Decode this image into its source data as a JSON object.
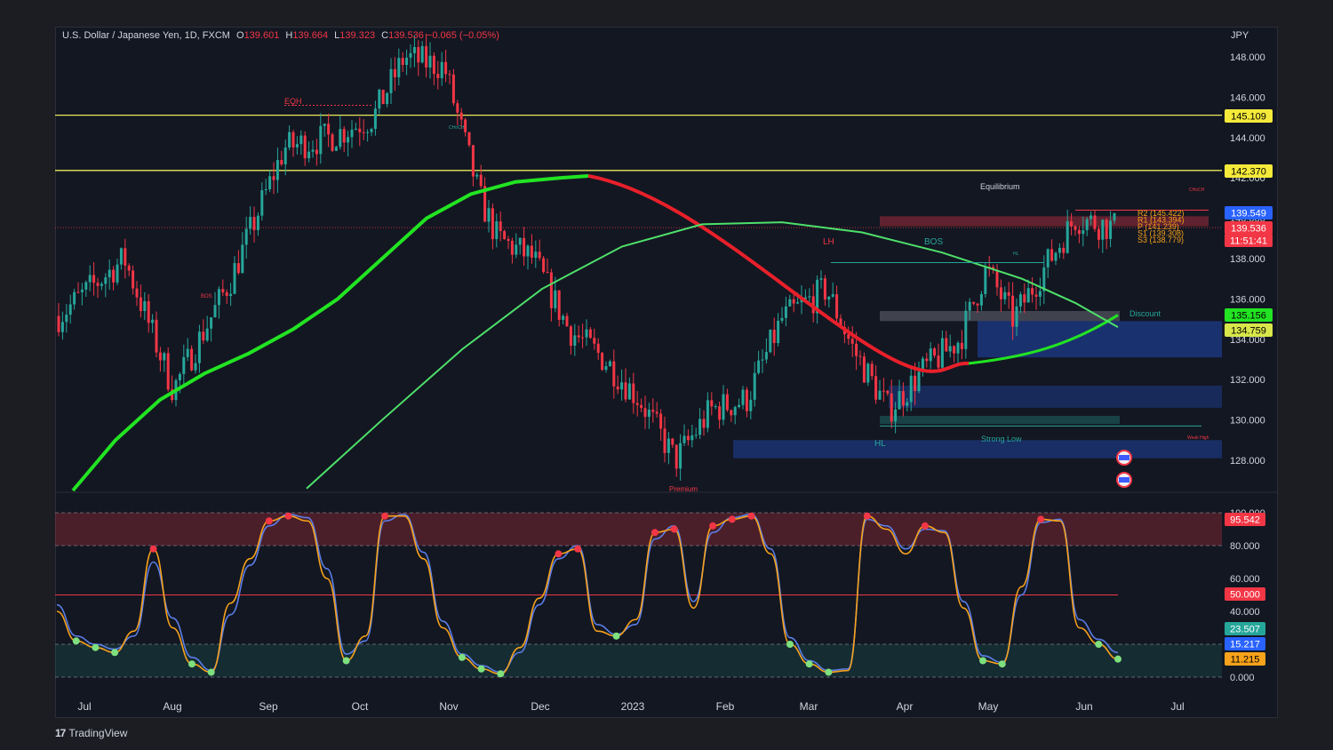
{
  "header": {
    "symbol": "U.S. Dollar / Japanese Yen, 1D, FXCM",
    "open_k": "O",
    "open_v": "139.601",
    "high_k": "H",
    "high_v": "139.664",
    "low_k": "L",
    "low_v": "139.323",
    "close_k": "C",
    "close_v": "139.536",
    "change_v": "−0.065 (−0.05%)"
  },
  "footer": {
    "brand": "TradingView",
    "logo": "17"
  },
  "currency": "JPY",
  "colors": {
    "up": "#26a69a",
    "down": "#f23645",
    "bg": "#131722",
    "ma_green": "#22e422",
    "ma_red": "#e8202a",
    "ma_light": "#4ee06a",
    "level": "#e8e85a",
    "stoch_k": "#f7a21b",
    "stoch_d": "#5b7ee8"
  },
  "chart_data": [
    {
      "type": "candlestick",
      "title": "U.S. Dollar / Japanese Yen, 1D, FXCM",
      "ylabel": "JPY",
      "ylim": [
        126.5,
        149.5
      ],
      "yticks": [
        "148.000",
        "146.000",
        "144.000",
        "142.000",
        "140.000",
        "138.000",
        "136.000",
        "134.000",
        "132.000",
        "130.000",
        "128.000"
      ],
      "xticks": [
        "Jul",
        "Aug",
        "Sep",
        "Oct",
        "Nov",
        "Dec",
        "2023",
        "Feb",
        "Mar",
        "Apr",
        "May",
        "Jun",
        "Jul"
      ],
      "price_labels": [
        {
          "text": "145.109",
          "bg": "#f5ea3a",
          "fg": "#000000"
        },
        {
          "text": "142.370",
          "bg": "#f5ea3a",
          "fg": "#000000"
        },
        {
          "text": "139.549",
          "bg": "#2962ff",
          "fg": "#ffffff"
        },
        {
          "text": "139.536",
          "bg": "#f23645",
          "fg": "#ffffff"
        },
        {
          "text": "11:51:41",
          "bg": "#f23645",
          "fg": "#ffffff"
        },
        {
          "text": "135.156",
          "bg": "#22e422",
          "fg": "#000000"
        },
        {
          "text": "134.759",
          "bg": "#d8e64a",
          "fg": "#000000"
        }
      ],
      "horizontal_levels": [
        145.109,
        142.37
      ],
      "annotations": [
        {
          "text": "EQH",
          "color": "#f23645"
        },
        {
          "text": "LH",
          "color": "#f23645"
        },
        {
          "text": "BOS",
          "color": "#26a69a"
        },
        {
          "text": "HL",
          "color": "#26a69a"
        },
        {
          "text": "HL",
          "color": "#26a69a"
        },
        {
          "text": "Premium",
          "color": "#f23645"
        },
        {
          "text": "Equilibrium",
          "color": "#d1d4dc"
        },
        {
          "text": "Discount",
          "color": "#26a69a"
        },
        {
          "text": "Strong Low",
          "color": "#26a69a"
        },
        {
          "text": "Weak High",
          "color": "#f23645"
        },
        {
          "text": "CHoCH",
          "color": "#f23645"
        },
        {
          "text": "CHoCH",
          "color": "#26a69a"
        },
        {
          "text": "BOS",
          "color": "#f23645"
        }
      ],
      "pivot_labels": [
        "R2 (145.422)",
        "R1 (143.394)",
        "P (141.239)",
        "S1 (139.308)",
        "S3 (138.779)"
      ],
      "series": [
        {
          "name": "",
          "kind": "ma_slow",
          "values": [
            126.5,
            129,
            131,
            132.3,
            133.3,
            134.5,
            136,
            138,
            140,
            141.2,
            141.8,
            142.0,
            142.1
          ]
        },
        {
          "name": "",
          "kind": "ma_arc",
          "values": [
            126.6,
            130,
            133.5,
            136.5,
            138.6,
            139.7,
            139.8,
            139.3,
            138.3,
            137,
            135.8,
            134.6
          ]
        }
      ]
    },
    {
      "type": "line",
      "title": "",
      "ylim": [
        0,
        100
      ],
      "yticks": [
        "100.000",
        "80.000",
        "60.000",
        "40.000",
        "20.000",
        "0.000"
      ],
      "levels": [
        80,
        50,
        20
      ],
      "value_labels": [
        {
          "text": "95.542",
          "bg": "#f23645",
          "fg": "#ffffff"
        },
        {
          "text": "50.000",
          "bg": "#f23645",
          "fg": "#ffffff"
        },
        {
          "text": "23.507",
          "bg": "#26a69a",
          "fg": "#ffffff"
        },
        {
          "text": "15.217",
          "bg": "#2962ff",
          "fg": "#ffffff"
        },
        {
          "text": "11.215",
          "bg": "#f7a21b",
          "fg": "#000000"
        }
      ],
      "series": [
        {
          "name": "",
          "values": [
            40,
            22,
            18,
            15,
            28,
            78,
            30,
            8,
            3,
            45,
            72,
            95,
            98,
            95,
            60,
            10,
            25,
            98,
            98,
            72,
            30,
            12,
            5,
            2,
            18,
            48,
            75,
            78,
            28,
            25,
            35,
            88,
            90,
            42,
            92,
            96,
            98,
            75,
            20,
            8,
            3,
            4,
            98,
            90,
            75,
            92,
            88,
            42,
            10,
            8,
            55,
            96,
            95,
            30,
            20,
            11
          ]
        },
        {
          "name": "",
          "values": [
            44,
            25,
            20,
            17,
            25,
            70,
            36,
            12,
            4,
            38,
            68,
            92,
            99,
            97,
            66,
            14,
            22,
            95,
            99,
            76,
            34,
            14,
            7,
            3,
            15,
            44,
            72,
            80,
            32,
            26,
            32,
            84,
            92,
            46,
            88,
            97,
            99,
            78,
            24,
            10,
            4,
            5,
            96,
            92,
            78,
            90,
            89,
            46,
            13,
            9,
            50,
            94,
            96,
            35,
            23,
            15
          ]
        }
      ]
    }
  ]
}
